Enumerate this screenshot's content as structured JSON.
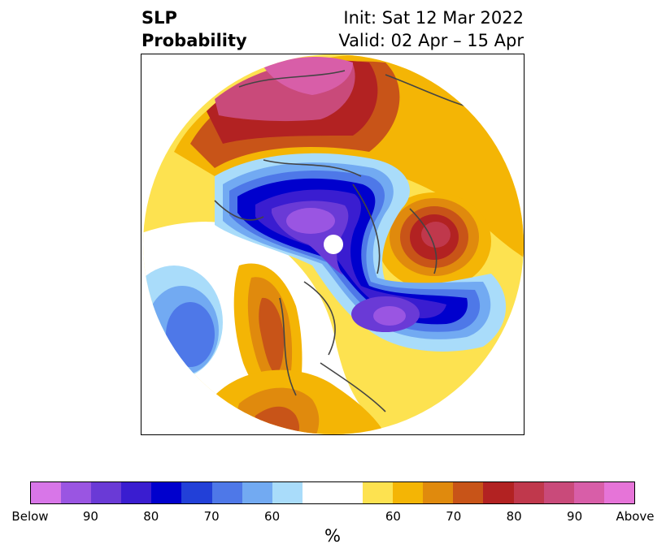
{
  "title": {
    "left_line1": "SLP",
    "left_line2": "Probability",
    "right_line1": "Init: Sat 12 Mar 2022",
    "right_line2": "Valid: 02 Apr – 15 Apr"
  },
  "colorbar": {
    "colors": [
      "#d876e8",
      "#9a55e2",
      "#6a3ad6",
      "#3a1dd0",
      "#0000cd",
      "#2240d8",
      "#4e78e8",
      "#72aaf2",
      "#a9dcfa",
      "#ffffff",
      "#ffffff",
      "#fde250",
      "#f4b505",
      "#e08a0d",
      "#c85418",
      "#b22222",
      "#c0384c",
      "#c94a7a",
      "#d85ea8",
      "#e674d8"
    ],
    "labels": [
      "Below",
      "90",
      "80",
      "70",
      "60",
      "",
      "60",
      "70",
      "80",
      "90",
      "Above"
    ],
    "unit": "%"
  },
  "map": {
    "description_free": true,
    "region": "Northern Hemisphere polar stereographic"
  }
}
